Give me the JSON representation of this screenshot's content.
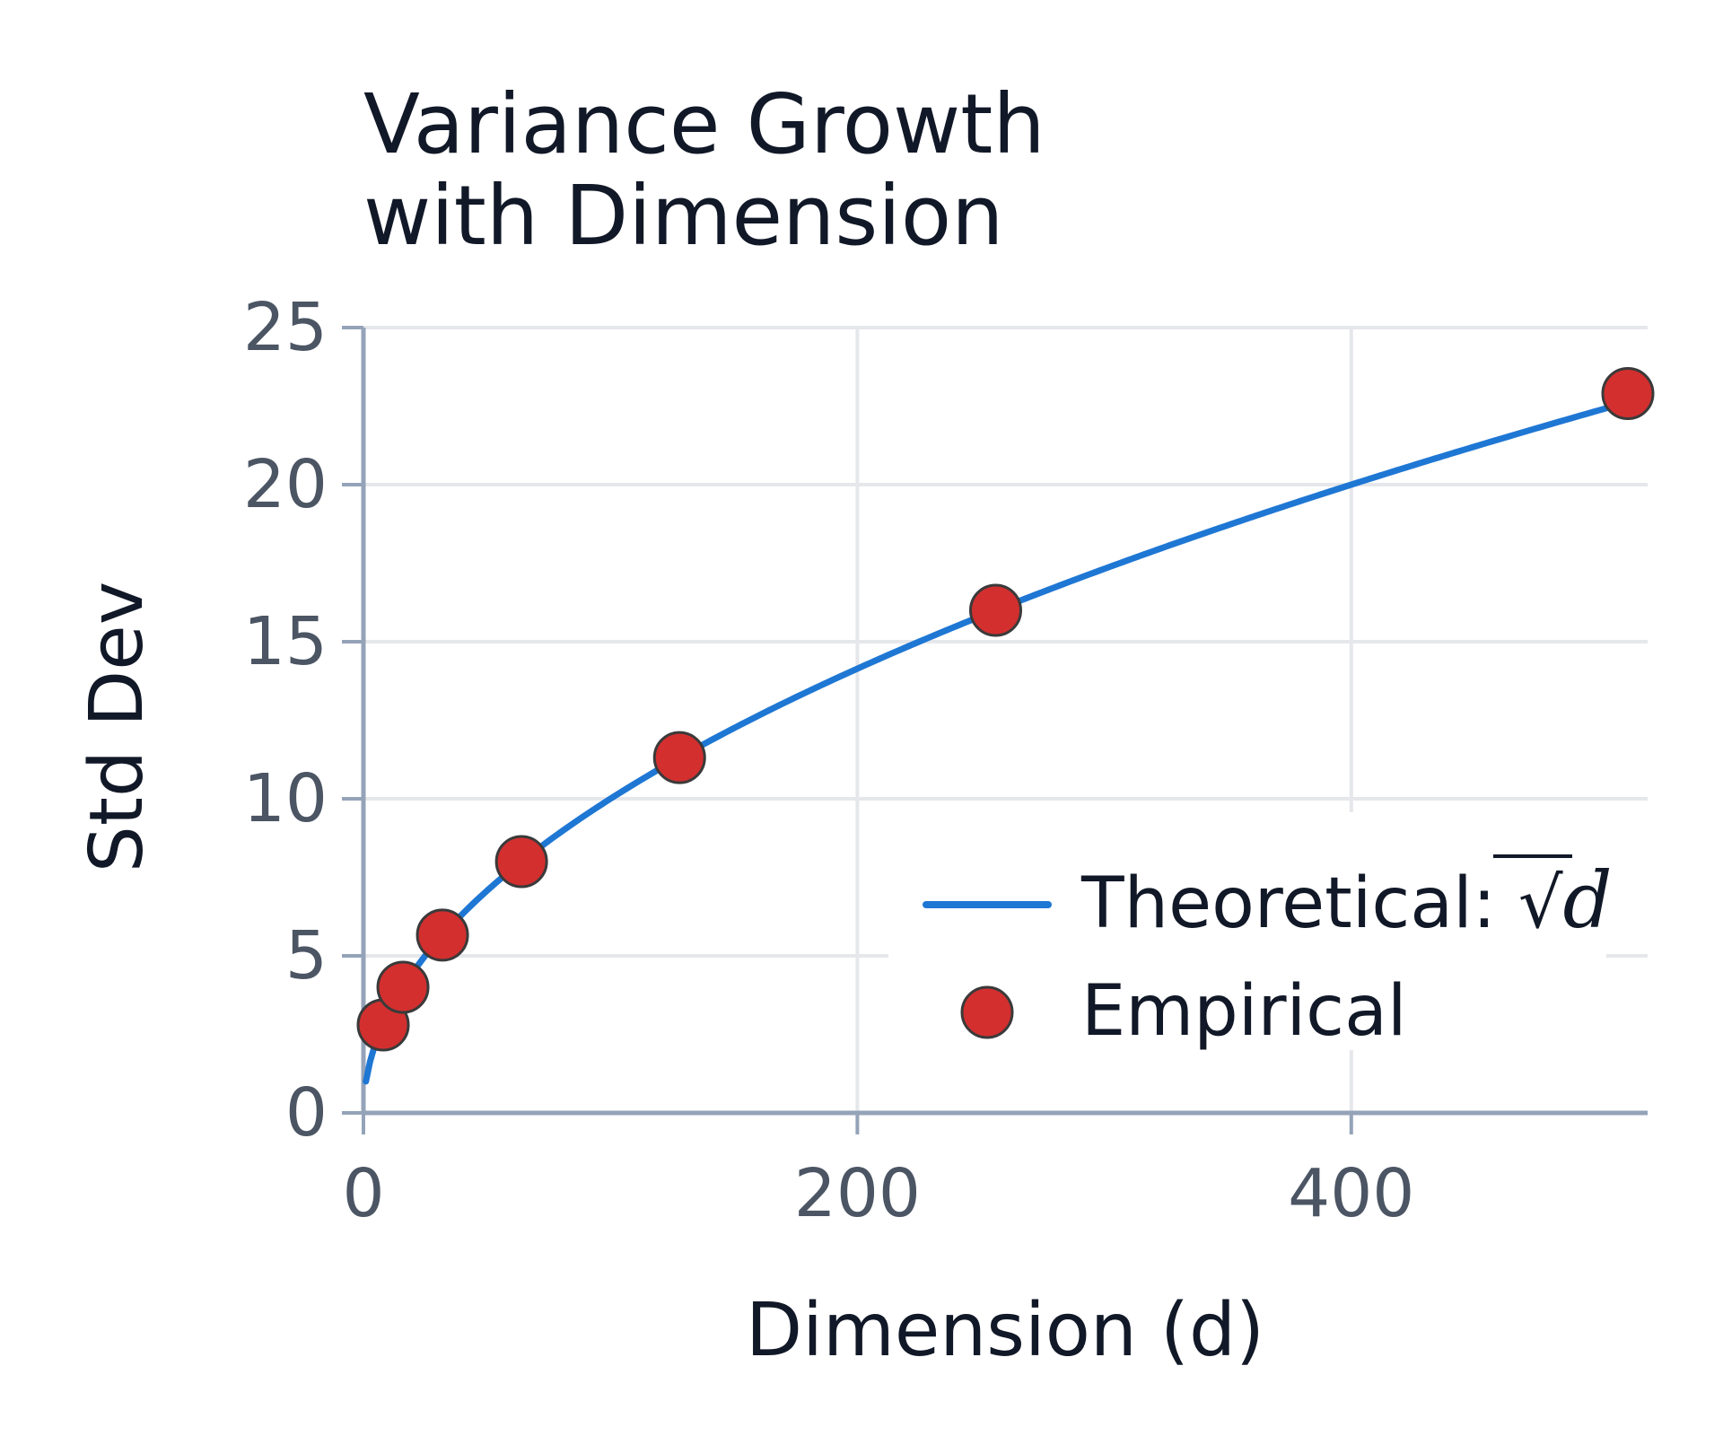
{
  "chart_data": {
    "type": "line",
    "title_lines": [
      "Variance Growth",
      "with Dimension"
    ],
    "xlabel": "Dimension (d)",
    "ylabel": "Std Dev",
    "xlim": [
      0,
      520
    ],
    "ylim": [
      0,
      25
    ],
    "x_ticks": [
      0,
      200,
      400
    ],
    "y_ticks": [
      0,
      5,
      10,
      15,
      20,
      25
    ],
    "grid": true,
    "legend_position": "lower-right",
    "series": [
      {
        "name": "Theoretical: ",
        "name_math": "d",
        "kind": "line",
        "function": "sqrt",
        "color": "#1f77d4"
      },
      {
        "name": "Empirical",
        "kind": "scatter",
        "color": "#d32f2f",
        "edge_color": "#3a3a3a",
        "x": [
          8,
          16,
          32,
          64,
          128,
          256,
          512
        ],
        "y": [
          2.8,
          4.0,
          5.66,
          8.0,
          11.31,
          16.0,
          22.9
        ]
      }
    ]
  }
}
